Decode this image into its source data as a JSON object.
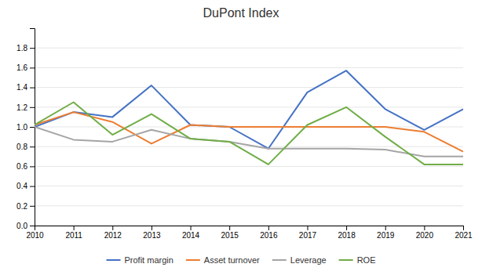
{
  "chart_data": {
    "type": "line",
    "title": "DuPont Index",
    "x": [
      2010,
      2011,
      2012,
      2013,
      2014,
      2015,
      2016,
      2017,
      2018,
      2019,
      2020,
      2021
    ],
    "series": [
      {
        "name": "Profit margin",
        "color": "#4472C4",
        "values": [
          1.0,
          1.15,
          1.1,
          1.42,
          1.02,
          1.0,
          0.78,
          1.35,
          1.57,
          1.18,
          0.97,
          1.18
        ]
      },
      {
        "name": "Asset turnover",
        "color": "#ED7D31",
        "values": [
          1.02,
          1.15,
          1.05,
          0.83,
          1.02,
          1.0,
          1.0,
          1.0,
          1.0,
          1.0,
          0.95,
          0.75
        ]
      },
      {
        "name": "Leverage",
        "color": "#A5A5A5",
        "values": [
          1.0,
          0.87,
          0.85,
          0.97,
          0.88,
          0.85,
          0.78,
          0.78,
          0.78,
          0.77,
          0.7,
          0.7
        ]
      },
      {
        "name": "ROE",
        "color": "#70AD47",
        "values": [
          1.02,
          1.25,
          0.92,
          1.13,
          0.88,
          0.85,
          0.62,
          1.02,
          1.2,
          0.9,
          0.62,
          0.62
        ]
      }
    ],
    "xlim": [
      2010,
      2021
    ],
    "xticks": [
      2010,
      2011,
      2012,
      2013,
      2014,
      2015,
      2016,
      2017,
      2018,
      2019,
      2020,
      2021
    ],
    "ylim": [
      0.0,
      2.0
    ],
    "yticks": [
      {
        "value": 0.0,
        "label": "0.0"
      },
      0.2,
      0.4,
      0.6,
      0.8,
      {
        "value": 1.0,
        "label": "1.0"
      },
      1.2,
      1.4,
      1.6,
      1.8
    ],
    "grid": true,
    "legend": "bottom"
  }
}
